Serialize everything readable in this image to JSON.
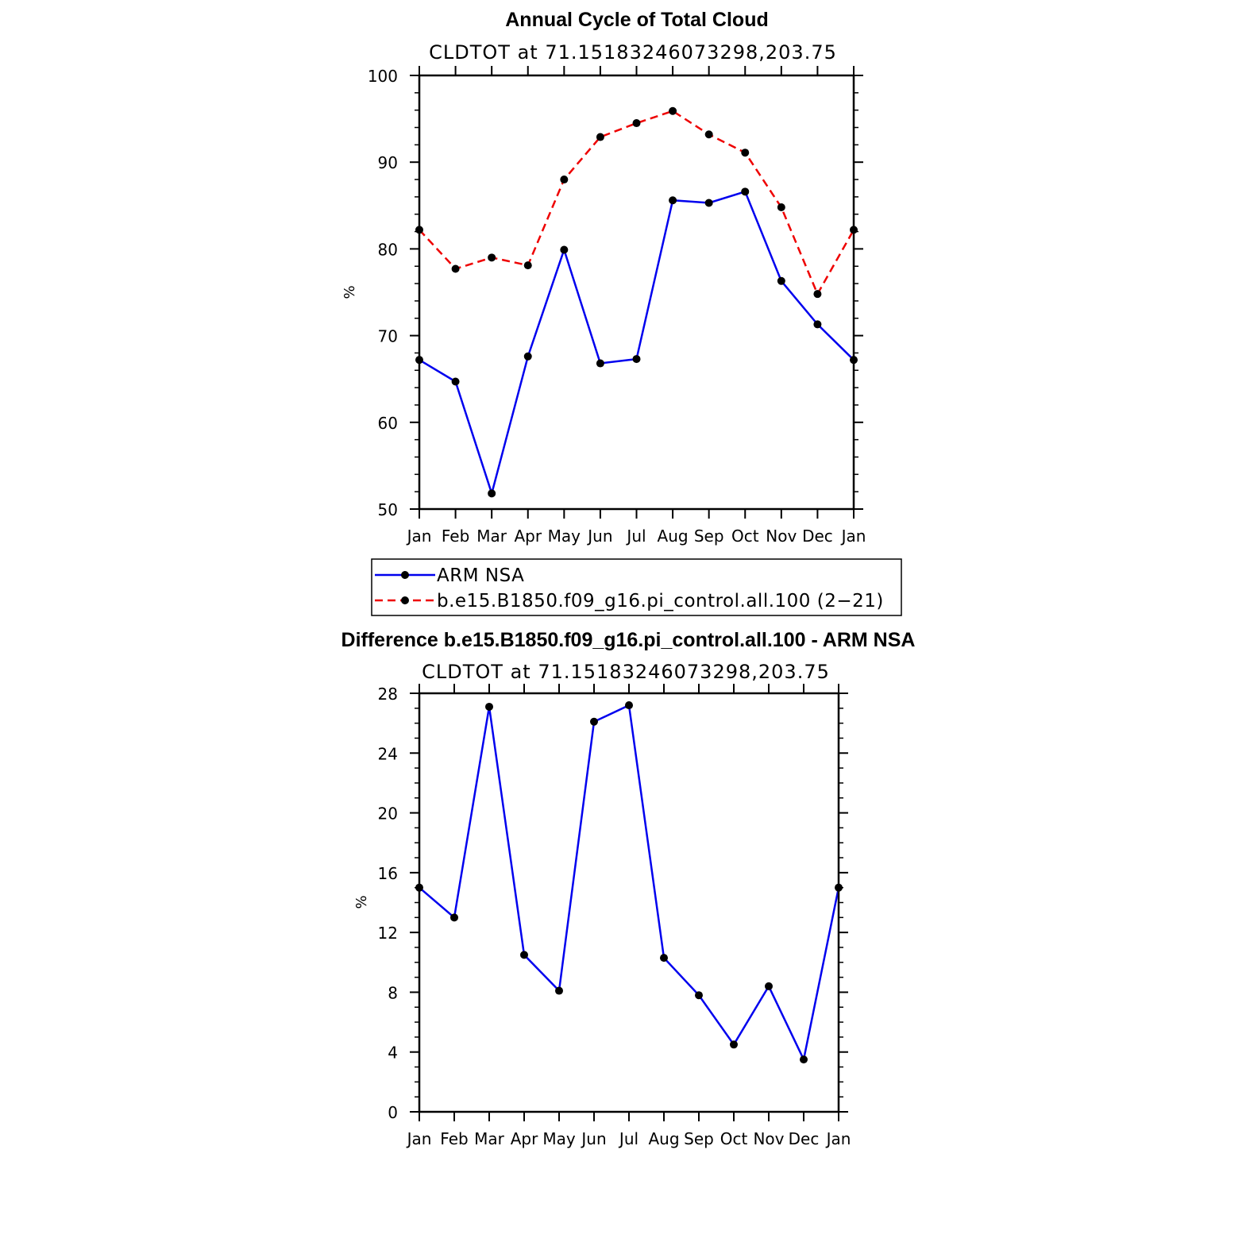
{
  "chart_data": [
    {
      "type": "line",
      "title": "Annual Cycle of Total Cloud",
      "subtitle": "CLDTOT at 71.15183246073298,203.75",
      "ylabel": "%",
      "ylim": [
        50,
        100
      ],
      "yticks": [
        "50",
        "60",
        "70",
        "80",
        "90",
        "100"
      ],
      "categories": [
        "Jan",
        "Feb",
        "Mar",
        "Apr",
        "May",
        "Jun",
        "Jul",
        "Aug",
        "Sep",
        "Oct",
        "Nov",
        "Dec",
        "Jan"
      ],
      "series": [
        {
          "name": "ARM NSA",
          "color": "#0000ee",
          "dash": "solid",
          "values": [
            67.2,
            64.7,
            51.8,
            67.6,
            79.9,
            66.8,
            67.3,
            85.6,
            85.3,
            86.6,
            76.3,
            71.3,
            67.2
          ]
        },
        {
          "name": "b.e15.B1850.f09_g16.pi_control.all.100 (2−21)",
          "color": "#ee0000",
          "dash": "dashed",
          "values": [
            82.2,
            77.7,
            79.0,
            78.1,
            88.0,
            92.9,
            94.5,
            95.9,
            93.2,
            91.1,
            84.8,
            74.8,
            82.2
          ]
        }
      ],
      "legend": "bottom"
    },
    {
      "type": "line",
      "title": "Difference b.e15.B1850.f09_g16.pi_control.all.100 - ARM NSA",
      "subtitle": "CLDTOT at 71.15183246073298,203.75",
      "ylabel": "%",
      "ylim": [
        0,
        28
      ],
      "yticks": [
        "0",
        "4",
        "8",
        "12",
        "16",
        "20",
        "24",
        "28"
      ],
      "categories": [
        "Jan",
        "Feb",
        "Mar",
        "Apr",
        "May",
        "Jun",
        "Jul",
        "Aug",
        "Sep",
        "Oct",
        "Nov",
        "Dec",
        "Jan"
      ],
      "series": [
        {
          "color": "#0000ee",
          "dash": "solid",
          "values": [
            15.0,
            13.0,
            27.1,
            10.5,
            8.1,
            26.1,
            27.2,
            10.3,
            7.8,
            4.5,
            8.4,
            3.5,
            15.0
          ]
        }
      ]
    }
  ]
}
